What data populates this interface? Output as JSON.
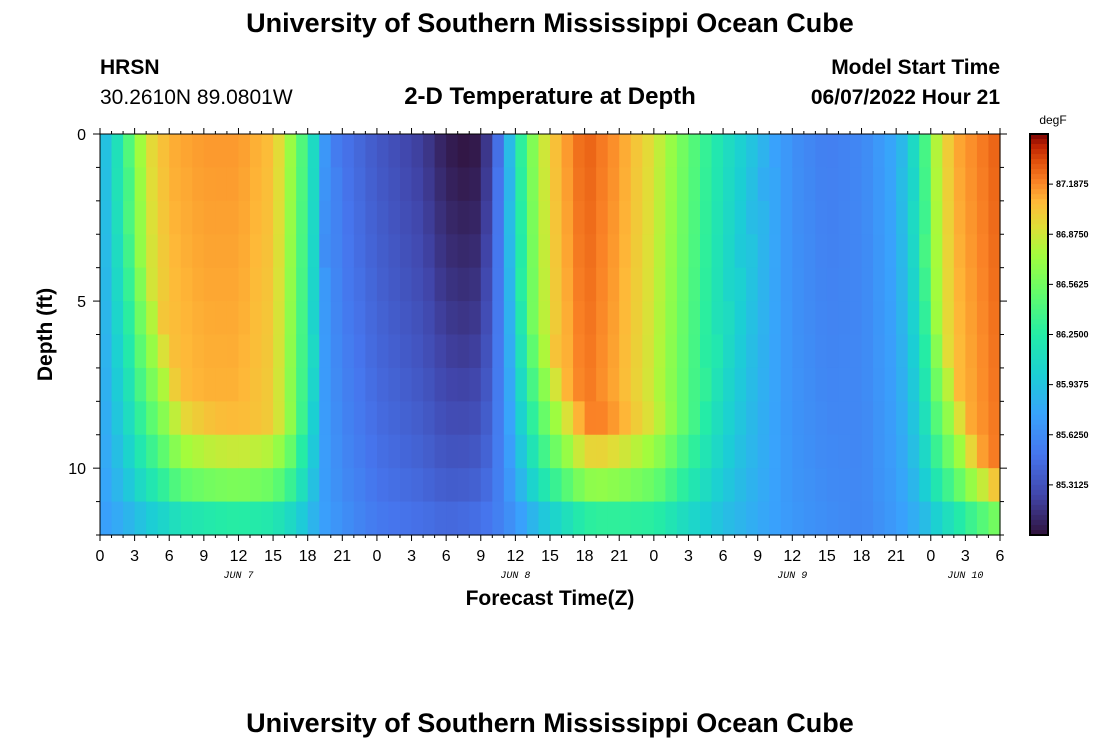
{
  "header": {
    "title": "University of Southern Mississippi Ocean Cube",
    "station": "HRSN",
    "coords": "30.2610N  89.0801W",
    "subtitle": "2-D Temperature at Depth",
    "model_label": "Model Start Time",
    "model_time": "06/07/2022 Hour 21"
  },
  "footer": {
    "title": "University of Southern Mississippi Ocean Cube"
  },
  "chart_data": {
    "type": "heatmap",
    "title": "2-D Temperature at Depth",
    "xlabel": "Forecast Time(Z)",
    "ylabel": "Depth (ft)",
    "x_ticks": [
      "0",
      "3",
      "6",
      "9",
      "12",
      "15",
      "18",
      "21",
      "0",
      "3",
      "6",
      "9",
      "12",
      "15",
      "18",
      "21",
      "0",
      "3",
      "6",
      "9",
      "12",
      "15",
      "18",
      "21",
      "0",
      "3",
      "6"
    ],
    "date_labels": [
      {
        "label": "JUN 7",
        "at_hour": 12
      },
      {
        "label": "JUN 8",
        "at_hour": 36
      },
      {
        "label": "JUN 9",
        "at_hour": 60
      },
      {
        "label": "JUN 10",
        "at_hour": 75
      }
    ],
    "x_range_hours": [
      0,
      78
    ],
    "y_ticks": [
      0,
      5,
      10
    ],
    "ylim": [
      0,
      12
    ],
    "depths_ft": [
      0.5,
      1.5,
      2.5,
      3.5,
      4.5,
      5.5,
      6.5,
      7.5,
      8.5,
      9.5,
      10.5,
      11.5
    ],
    "colorbar": {
      "unit": "degF",
      "min": 85.0,
      "max": 87.5,
      "tick_values": [
        87.1875,
        86.875,
        86.5625,
        86.25,
        85.9375,
        85.625,
        85.3125
      ],
      "tick_labels": [
        "87.1875",
        "86.8750",
        "86.5625",
        "86.2500",
        "85.9375",
        "85.6250",
        "85.3125"
      ]
    },
    "time_profile_surface": [
      [
        0,
        85.8
      ],
      [
        2,
        86.3
      ],
      [
        4,
        86.9
      ],
      [
        6,
        87.1
      ],
      [
        9,
        87.15
      ],
      [
        12,
        87.15
      ],
      [
        15,
        87.05
      ],
      [
        17,
        86.6
      ],
      [
        18.5,
        86.1
      ],
      [
        19.5,
        85.7
      ],
      [
        21,
        85.5
      ],
      [
        24,
        85.35
      ],
      [
        28,
        85.2
      ],
      [
        30,
        85.05
      ],
      [
        32,
        85.0
      ],
      [
        33,
        85.05
      ],
      [
        34,
        85.3
      ],
      [
        35,
        85.7
      ],
      [
        36,
        86.1
      ],
      [
        37,
        86.5
      ],
      [
        39,
        87.0
      ],
      [
        42,
        87.3
      ],
      [
        45,
        87.15
      ],
      [
        48,
        86.9
      ],
      [
        51,
        86.5
      ],
      [
        54,
        86.15
      ],
      [
        57,
        85.9
      ],
      [
        60,
        85.65
      ],
      [
        63,
        85.55
      ],
      [
        66,
        85.6
      ],
      [
        69,
        85.8
      ],
      [
        71,
        86.2
      ],
      [
        72.5,
        86.8
      ],
      [
        74,
        87.1
      ],
      [
        78,
        87.3
      ]
    ],
    "time_profile_bottom": [
      [
        0,
        85.7
      ],
      [
        6,
        85.8
      ],
      [
        12,
        85.9
      ],
      [
        18,
        85.8
      ],
      [
        24,
        85.55
      ],
      [
        30,
        85.5
      ],
      [
        36,
        85.6
      ],
      [
        42,
        85.85
      ],
      [
        48,
        86.0
      ],
      [
        54,
        85.85
      ],
      [
        60,
        85.7
      ],
      [
        66,
        85.6
      ],
      [
        72,
        85.8
      ],
      [
        78,
        86.1
      ]
    ],
    "warm_layer_front": [
      [
        0,
        0.0
      ],
      [
        2,
        1.0
      ],
      [
        4,
        3.0
      ],
      [
        6,
        6.0
      ],
      [
        7,
        7.5
      ],
      [
        10,
        8.0
      ],
      [
        14,
        8.2
      ],
      [
        17,
        8.2
      ],
      [
        18,
        7.0
      ],
      [
        19,
        5.0
      ],
      [
        20,
        2.0
      ],
      [
        21,
        0.0
      ],
      [
        33,
        0.0
      ],
      [
        35,
        1.5
      ],
      [
        36,
        3.0
      ],
      [
        37,
        4.5
      ],
      [
        39,
        6.0
      ],
      [
        41,
        7.5
      ],
      [
        43,
        8.4
      ],
      [
        49,
        8.3
      ],
      [
        52,
        7.5
      ],
      [
        54,
        6.0
      ],
      [
        56,
        3.5
      ],
      [
        58,
        1.5
      ],
      [
        60,
        0.0
      ],
      [
        69,
        0.0
      ],
      [
        70,
        1.5
      ],
      [
        72,
        4.0
      ],
      [
        74,
        6.5
      ],
      [
        75.5,
        8.5
      ],
      [
        77,
        9.5
      ],
      [
        78,
        10.0
      ]
    ]
  }
}
